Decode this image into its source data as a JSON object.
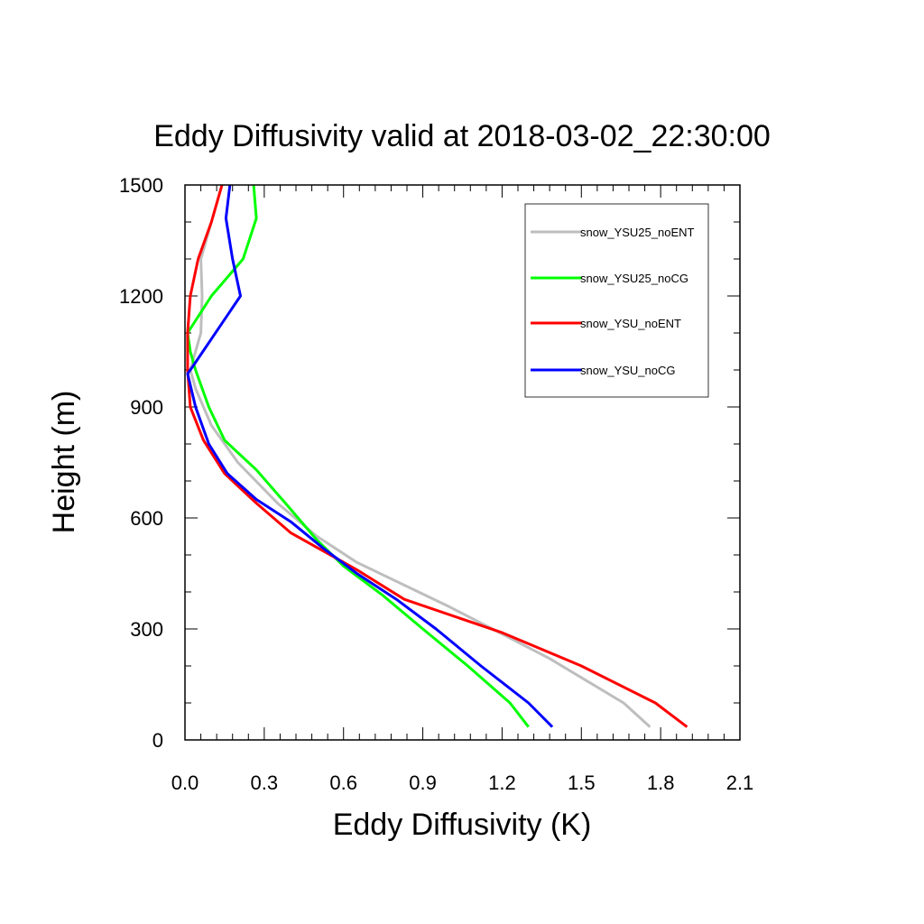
{
  "chart_data": {
    "type": "line",
    "title": "Eddy Diffusivity valid at 2018-03-02_22:30:00",
    "xlabel": "Eddy Diffusivity (K)",
    "ylabel": "Height (m)",
    "xlim": [
      0,
      2.1
    ],
    "ylim": [
      0,
      1500
    ],
    "xticks": [
      0.0,
      0.3,
      0.6,
      0.9,
      1.2,
      1.5,
      1.8,
      2.1
    ],
    "xtick_labels": [
      "0.0",
      "0.3",
      "0.6",
      "0.9",
      "1.2",
      "1.5",
      "1.8",
      "2.1"
    ],
    "yticks": [
      0,
      300,
      600,
      900,
      1200,
      1500
    ],
    "ytick_labels": [
      "0",
      "300",
      "600",
      "900",
      "1200",
      "1500"
    ],
    "grid": false,
    "legend_position": "top-right",
    "series": [
      {
        "name": "snow_YSU25_noENT",
        "color": "#bebebe",
        "points": [
          [
            1.76,
            35
          ],
          [
            1.66,
            100
          ],
          [
            1.38,
            220
          ],
          [
            1.0,
            360
          ],
          [
            0.65,
            480
          ],
          [
            0.5,
            550
          ],
          [
            0.35,
            640
          ],
          [
            0.2,
            750
          ],
          [
            0.1,
            850
          ],
          [
            0.04,
            950
          ],
          [
            0.02,
            1000
          ],
          [
            0.04,
            1050
          ],
          [
            0.06,
            1100
          ],
          [
            0.065,
            1200
          ],
          [
            0.06,
            1300
          ],
          [
            0.1,
            1400
          ],
          [
            0.14,
            1500
          ]
        ]
      },
      {
        "name": "snow_YSU25_noCG",
        "color": "#00ff00",
        "points": [
          [
            1.3,
            35
          ],
          [
            1.23,
            100
          ],
          [
            1.07,
            200
          ],
          [
            0.9,
            300
          ],
          [
            0.75,
            390
          ],
          [
            0.6,
            470
          ],
          [
            0.5,
            540
          ],
          [
            0.38,
            640
          ],
          [
            0.27,
            730
          ],
          [
            0.15,
            810
          ],
          [
            0.09,
            900
          ],
          [
            0.04,
            1000
          ],
          [
            0.02,
            1050
          ],
          [
            0.01,
            1100
          ],
          [
            0.1,
            1200
          ],
          [
            0.22,
            1300
          ],
          [
            0.27,
            1410
          ],
          [
            0.26,
            1500
          ]
        ]
      },
      {
        "name": "snow_YSU_noENT",
        "color": "#ff0000",
        "points": [
          [
            1.9,
            35
          ],
          [
            1.78,
            100
          ],
          [
            1.5,
            200
          ],
          [
            1.2,
            290
          ],
          [
            0.83,
            380
          ],
          [
            0.65,
            460
          ],
          [
            0.4,
            560
          ],
          [
            0.27,
            640
          ],
          [
            0.15,
            720
          ],
          [
            0.07,
            810
          ],
          [
            0.02,
            900
          ],
          [
            0.01,
            1000
          ],
          [
            0.01,
            1100
          ],
          [
            0.02,
            1200
          ],
          [
            0.05,
            1300
          ],
          [
            0.1,
            1400
          ],
          [
            0.14,
            1500
          ]
        ]
      },
      {
        "name": "snow_YSU_noCG",
        "color": "#0000ff",
        "points": [
          [
            1.39,
            35
          ],
          [
            1.3,
            100
          ],
          [
            1.12,
            200
          ],
          [
            0.95,
            300
          ],
          [
            0.8,
            380
          ],
          [
            0.65,
            450
          ],
          [
            0.52,
            520
          ],
          [
            0.4,
            590
          ],
          [
            0.27,
            650
          ],
          [
            0.16,
            720
          ],
          [
            0.09,
            800
          ],
          [
            0.04,
            900
          ],
          [
            0.01,
            990
          ],
          [
            0.03,
            1010
          ],
          [
            0.21,
            1200
          ],
          [
            0.18,
            1300
          ],
          [
            0.155,
            1410
          ],
          [
            0.17,
            1500
          ]
        ]
      }
    ]
  }
}
